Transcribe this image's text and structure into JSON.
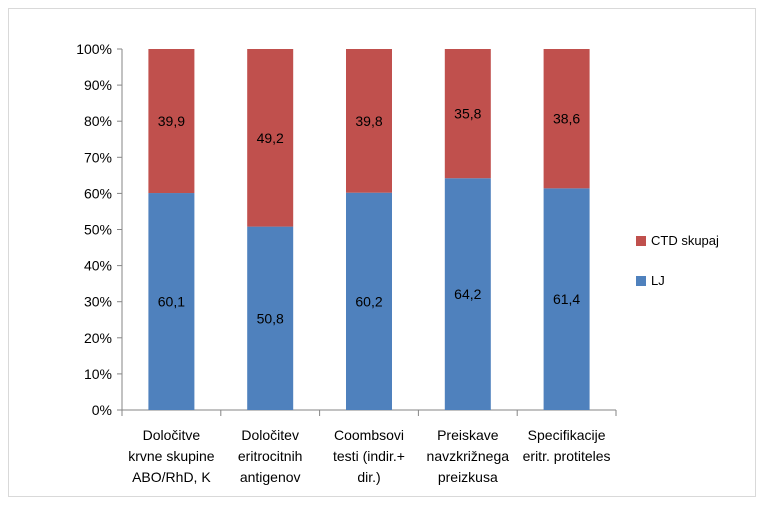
{
  "chart_data": {
    "type": "bar",
    "stacked": true,
    "percent_stacked": true,
    "categories": [
      [
        "Določitve",
        "krvne skupine",
        "ABO/RhD, K"
      ],
      [
        "Določitev",
        "eritrocitnih",
        "antigenov"
      ],
      [
        "Coombsovi",
        "testi (indir.+",
        "dir.)"
      ],
      [
        "Preiskave",
        "navzkrižnega",
        "preizkusa"
      ],
      [
        "Specifikacije",
        "eritr. protiteles"
      ]
    ],
    "series": [
      {
        "name": "LJ",
        "color": "#4f81bd",
        "values": [
          60.1,
          50.8,
          60.2,
          64.2,
          61.4
        ],
        "labels": [
          "60,1",
          "50,8",
          "60,2",
          "64,2",
          "61,4"
        ]
      },
      {
        "name": "CTD skupaj",
        "color": "#c0504d",
        "values": [
          39.9,
          49.2,
          39.8,
          35.8,
          38.6
        ],
        "labels": [
          "39,9",
          "49,2",
          "39,8",
          "35,8",
          "38,6"
        ]
      }
    ],
    "ylim": [
      0,
      100
    ],
    "yticks": [
      "0%",
      "10%",
      "20%",
      "30%",
      "40%",
      "50%",
      "60%",
      "70%",
      "80%",
      "90%",
      "100%"
    ],
    "grid": false,
    "legend_position": "right",
    "legend_order": [
      "CTD skupaj",
      "LJ"
    ]
  }
}
